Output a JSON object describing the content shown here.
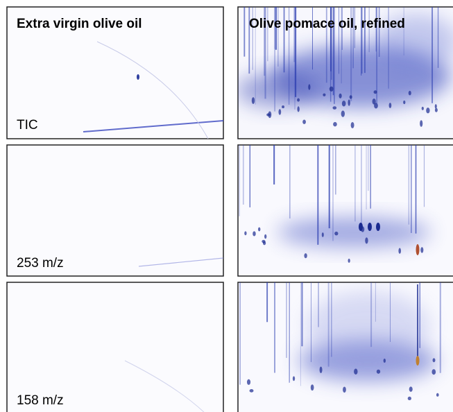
{
  "columns": [
    "Extra virgin olive oil",
    "Olive pomace oil, refined"
  ],
  "rows": [
    "TIC",
    "253 m/z",
    "158 m/z"
  ]
}
